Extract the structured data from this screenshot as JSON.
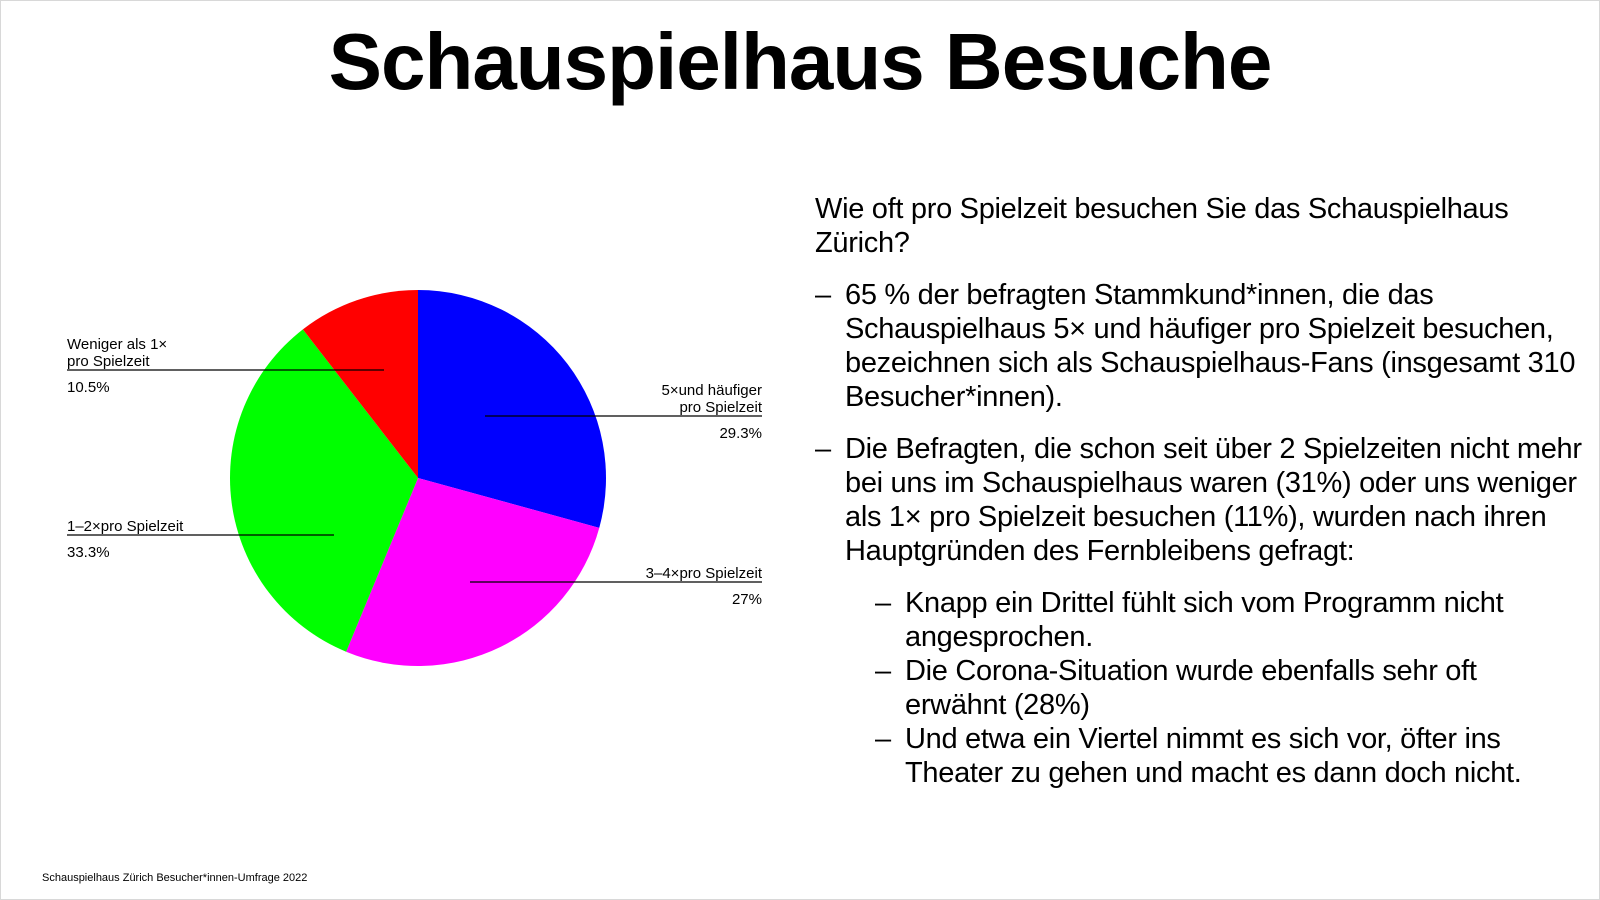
{
  "title": "Schauspielhaus Besuche",
  "chart_data": {
    "type": "pie",
    "start": "12 o'clock, clockwise",
    "slices": [
      {
        "label_lines": [
          "5×und häufiger",
          "pro Spielzeit"
        ],
        "value": 29.3,
        "value_label": "29.3%",
        "color": "#0000ff",
        "label_side": "right"
      },
      {
        "label_lines": [
          "3–4×pro Spielzeit"
        ],
        "value": 27,
        "value_label": "27%",
        "color": "#ff00ff",
        "label_side": "right"
      },
      {
        "label_lines": [
          "1–2×pro Spielzeit"
        ],
        "value": 33.3,
        "value_label": "33.3%",
        "color": "#00ff00",
        "label_side": "left"
      },
      {
        "label_lines": [
          "Weniger als 1×",
          "pro Spielzeit"
        ],
        "value": 10.5,
        "value_label": "10.5%",
        "color": "#ff0000",
        "label_side": "left"
      }
    ]
  },
  "text": {
    "question": "Wie oft pro Spielzeit besuchen Sie das Schauspielhaus Zürich?",
    "dash": "–",
    "points": [
      "65 % der befragten Stammkund*innen, die das Schauspielhaus 5× und häufiger pro Spielzeit besuchen, bezeichnen sich als Schauspielhaus-Fans (insgesamt 310 Besucher*innen).",
      "Die Befragten, die schon seit über 2 Spielzeiten nicht mehr bei uns im Schauspielhaus waren (31%) oder uns weniger als 1× pro Spielzeit besuchen (11%), wurden nach ihren Hauptgründen des Fernbleibens gefragt:"
    ],
    "subpoints": [
      "Knapp ein Drittel fühlt sich vom Programm nicht angesprochen.",
      "Die Corona-Situation wurde ebenfalls sehr oft erwähnt (28%)",
      "Und etwa ein Viertel nimmt es sich vor, öfter ins Theater zu gehen und macht es dann doch nicht."
    ]
  },
  "footnote": "Schauspielhaus Zürich Besucher*innen-Umfrage 2022"
}
